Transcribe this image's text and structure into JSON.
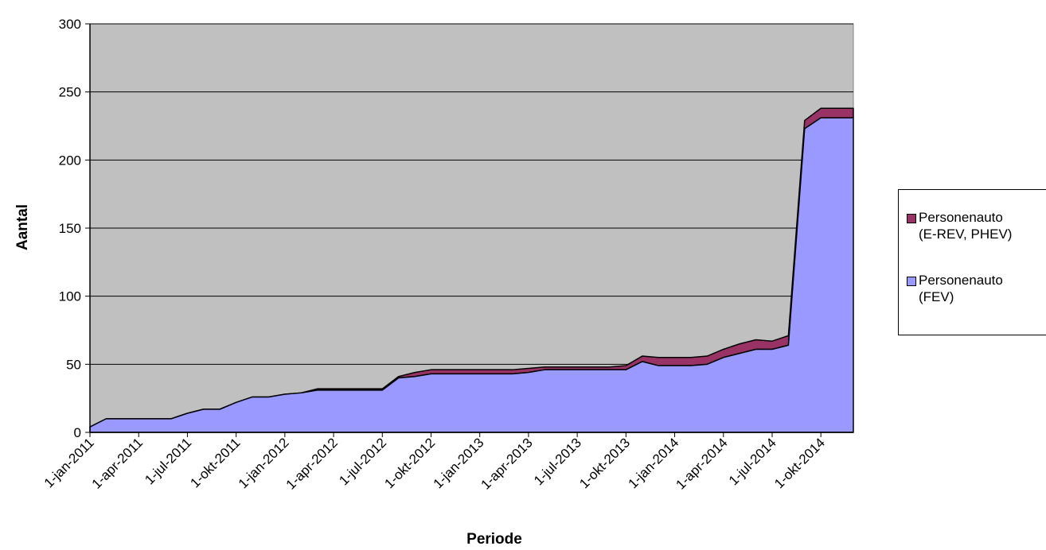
{
  "chart_data": {
    "type": "area",
    "stacked": true,
    "title": "",
    "xlabel": "Periode",
    "ylabel": "Aantal",
    "ylim": [
      0,
      300
    ],
    "yticks": [
      0,
      50,
      100,
      150,
      200,
      250,
      300
    ],
    "x_tick_labels": [
      "1-jan-2011",
      "1-apr-2011",
      "1-jul-2011",
      "1-okt-2011",
      "1-jan-2012",
      "1-apr-2012",
      "1-jul-2012",
      "1-okt-2012",
      "1-jan-2013",
      "1-apr-2013",
      "1-jul-2013",
      "1-okt-2013",
      "1-jan-2014",
      "1-apr-2014",
      "1-jul-2014",
      "1-okt-2014"
    ],
    "grid": "horizontal",
    "plot_background": "#c0c0c0",
    "legend_position": "right",
    "series": [
      {
        "name": "Personenauto (FEV)",
        "name_lines": [
          "Personenauto",
          "(FEV)"
        ],
        "color": "#9999ff",
        "values": [
          4,
          10,
          10,
          10,
          10,
          10,
          14,
          17,
          17,
          22,
          26,
          26,
          28,
          29,
          31,
          31,
          31,
          31,
          31,
          40,
          41,
          43,
          43,
          43,
          43,
          43,
          43,
          44,
          46,
          46,
          46,
          46,
          46,
          46,
          52,
          49,
          49,
          49,
          50,
          55,
          58,
          61,
          61,
          64,
          223,
          231,
          231,
          231
        ]
      },
      {
        "name": "Personenauto (E-REV, PHEV)",
        "name_lines": [
          "Personenauto",
          "(E-REV, PHEV)"
        ],
        "color": "#993366",
        "values": [
          0,
          0,
          0,
          0,
          0,
          0,
          0,
          0,
          0,
          0,
          0,
          0,
          0,
          0,
          1,
          1,
          1,
          1,
          1,
          1,
          3,
          3,
          3,
          3,
          3,
          3,
          3,
          3,
          2,
          2,
          2,
          2,
          2,
          3,
          4,
          6,
          6,
          6,
          6,
          6,
          7,
          7,
          6,
          7,
          6,
          7,
          7,
          7
        ]
      }
    ]
  }
}
